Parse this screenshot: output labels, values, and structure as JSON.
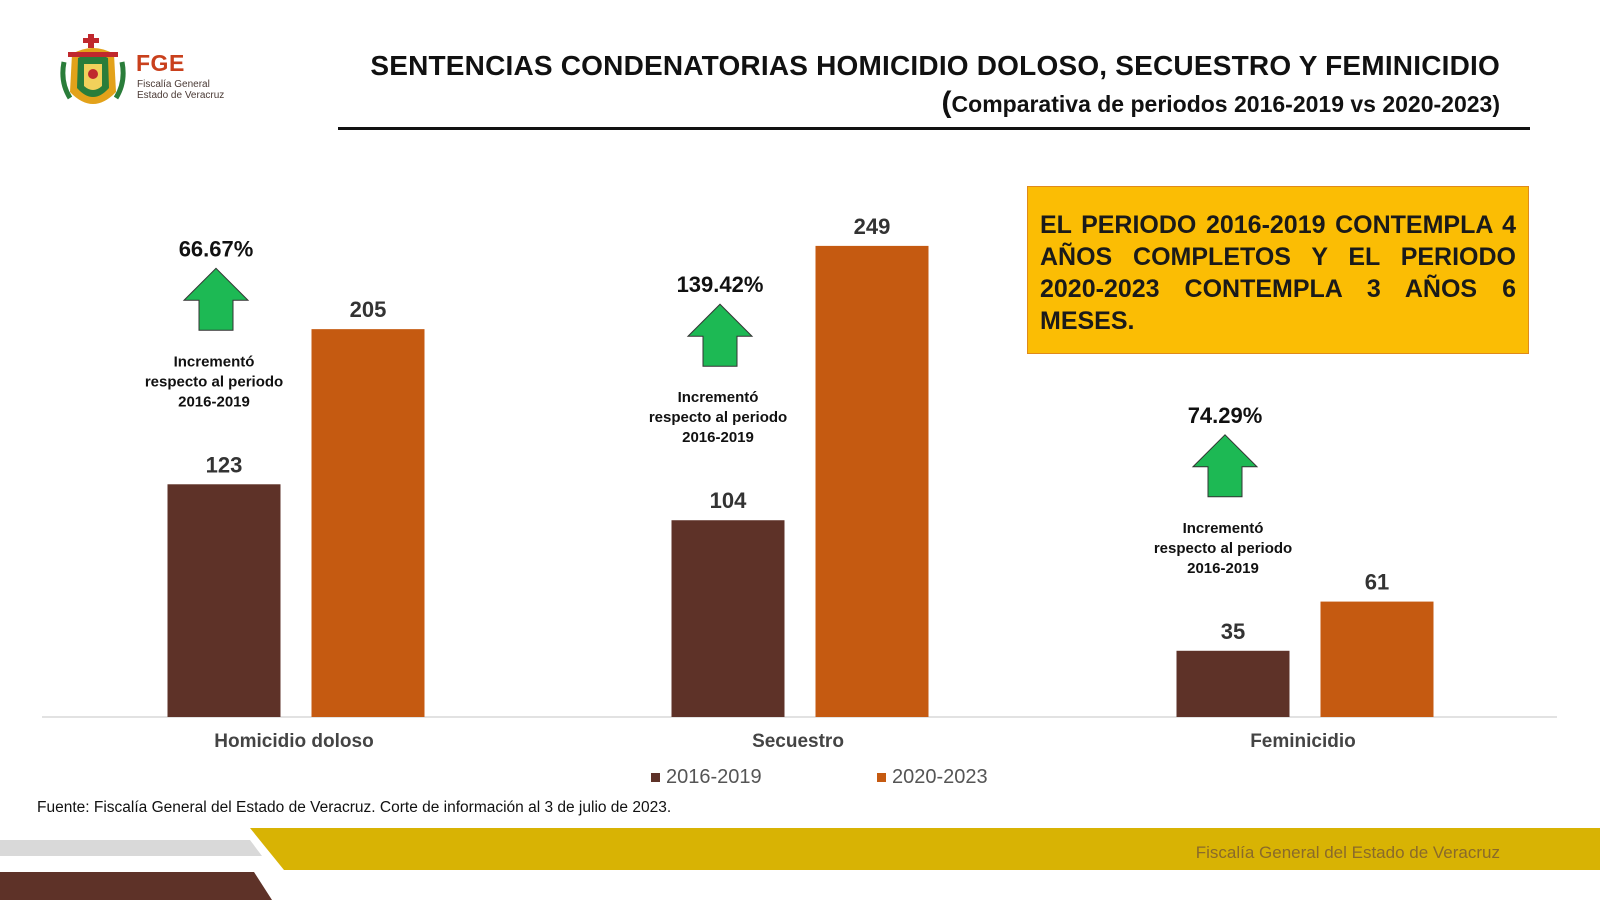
{
  "logo": {
    "abbr": "FGE",
    "name_line1": "Fiscalía General",
    "name_line2": "Estado de Veracruz"
  },
  "header": {
    "title": "SENTENCIAS CONDENATORIAS HOMICIDIO DOLOSO, SECUESTRO Y FEMINICIDIO",
    "subtitle": "Comparativa de periodos 2016-2019 vs 2020-2023)",
    "subtitle_paren": "("
  },
  "note": "EL PERIODO 2016-2019 CONTEMPLA 4 AÑOS COMPLETOS Y EL PERIODO 2020-2023 CONTEMPLA 3 AÑOS 6 MESES.",
  "chart_data": {
    "type": "bar",
    "categories": [
      "Homicidio doloso",
      "Secuestro",
      "Feminicidio"
    ],
    "series": [
      {
        "name": "2016-2019",
        "values": [
          123,
          104,
          35
        ],
        "color": "#5e3228"
      },
      {
        "name": "2020-2023",
        "values": [
          205,
          249,
          61
        ],
        "color": "#c55a11"
      }
    ],
    "increments": [
      {
        "pct": "66.67%",
        "lines": [
          "Incrementó",
          "respecto al periodo",
          "2016-2019"
        ]
      },
      {
        "pct": "139.42%",
        "lines": [
          "Incrementó",
          "respecto al periodo",
          "2016-2019"
        ]
      },
      {
        "pct": "74.29%",
        "lines": [
          "Incrementó",
          "respecto al periodo",
          "2016-2019"
        ]
      }
    ],
    "ylim": [
      0,
      260
    ],
    "grid": false,
    "legend_position": "bottom-center",
    "xlabel": "",
    "ylabel": ""
  },
  "source": "Fuente: Fiscalía General del Estado de Veracruz. Corte de información al 3 de julio de 2023.",
  "footer": {
    "text": "Fiscalía General del Estado de Veracruz"
  },
  "colors": {
    "arrow": "#1db954",
    "note_bg": "#fbbd04",
    "footer_gold": "#d8b304",
    "footer_brown": "#5e3228"
  }
}
